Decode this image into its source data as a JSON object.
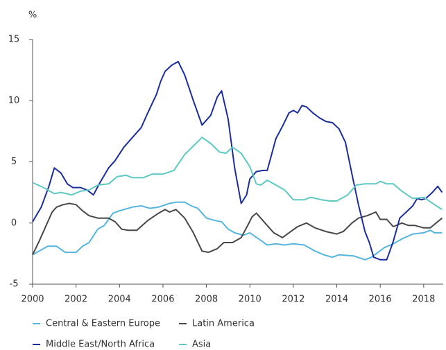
{
  "chart_data": {
    "type": "line",
    "y_label": "%",
    "xlim": [
      2000,
      2018.9
    ],
    "xticks": [
      2000,
      2002,
      2004,
      2006,
      2008,
      2010,
      2012,
      2014,
      2016,
      2018
    ],
    "ylim": [
      -5,
      15
    ],
    "yticks": [
      -5,
      0,
      5,
      10,
      15
    ],
    "series": [
      {
        "name": "Central & Eastern Europe",
        "color": "#55b5df",
        "x": [
          2000,
          2000.3,
          2000.7,
          2001.1,
          2001.5,
          2002,
          2002.3,
          2002.6,
          2003,
          2003.3,
          2003.7,
          2004,
          2004.6,
          2005.0,
          2005.4,
          2005.8,
          2006.3,
          2006.6,
          2007.0,
          2007.3,
          2007.6,
          2008.0,
          2008.4,
          2008.7,
          2009.0,
          2009.3,
          2009.7,
          2010.0,
          2010.4,
          2010.8,
          2011.2,
          2011.6,
          2012.0,
          2012.5,
          2013.0,
          2013.4,
          2013.8,
          2014.1,
          2014.8,
          2015.3,
          2015.6,
          2016.2,
          2016.6,
          2017.0,
          2017.5,
          2018.0,
          2018.3,
          2018.5,
          2018.85
        ],
        "values": [
          -2.6,
          -2.3,
          -1.9,
          -1.9,
          -2.4,
          -2.4,
          -1.9,
          -1.6,
          -0.5,
          -0.2,
          0.8,
          1.0,
          1.3,
          1.4,
          1.2,
          1.3,
          1.6,
          1.7,
          1.7,
          1.4,
          1.2,
          0.4,
          0.2,
          0.1,
          -0.5,
          -0.8,
          -1.0,
          -0.8,
          -1.3,
          -1.8,
          -1.7,
          -1.8,
          -1.7,
          -1.8,
          -2.3,
          -2.6,
          -2.8,
          -2.6,
          -2.7,
          -3.0,
          -2.8,
          -2.0,
          -1.7,
          -1.3,
          -0.9,
          -0.8,
          -0.6,
          -0.8,
          -0.8
        ]
      },
      {
        "name": "Latin America",
        "color": "#474747",
        "x": [
          2000,
          2000.3,
          2000.6,
          2000.9,
          2001.1,
          2001.4,
          2001.7,
          2002.0,
          2002.3,
          2002.6,
          2003,
          2003.5,
          2003.8,
          2004.1,
          2004.4,
          2004.8,
          2005.3,
          2005.8,
          2006.1,
          2006.3,
          2006.6,
          2007.0,
          2007.4,
          2007.8,
          2008.1,
          2008.5,
          2008.8,
          2009.2,
          2009.6,
          2009.9,
          2010.1,
          2010.3,
          2010.6,
          2011.1,
          2011.5,
          2011.8,
          2012.2,
          2012.6,
          2013.0,
          2013.5,
          2014.0,
          2014.3,
          2014.7,
          2015.0,
          2015.4,
          2015.8,
          2016.0,
          2016.3,
          2016.6,
          2017.0,
          2017.3,
          2017.6,
          2018.0,
          2018.3,
          2018.85
        ],
        "values": [
          -2.6,
          -1.5,
          -0.3,
          0.9,
          1.3,
          1.5,
          1.6,
          1.5,
          1.0,
          0.6,
          0.4,
          0.4,
          0.1,
          -0.5,
          -0.6,
          -0.6,
          0.2,
          0.8,
          1.1,
          0.9,
          1.1,
          0.4,
          -0.8,
          -2.3,
          -2.4,
          -2.1,
          -1.6,
          -1.6,
          -1.2,
          -0.2,
          0.5,
          0.8,
          0.2,
          -0.8,
          -1.2,
          -0.8,
          -0.3,
          0.0,
          -0.4,
          -0.7,
          -0.9,
          -0.7,
          0.0,
          0.4,
          0.6,
          0.9,
          0.3,
          0.3,
          -0.3,
          0.0,
          -0.2,
          -0.2,
          -0.4,
          -0.4,
          0.4
        ]
      },
      {
        "name": "Middle East/North Africa",
        "color": "#1a2d9c",
        "x": [
          2000.0,
          2000.4,
          2000.75,
          2001.0,
          2001.3,
          2001.6,
          2001.85,
          2002.2,
          2002.5,
          2002.8,
          2003.1,
          2003.5,
          2003.8,
          2004.2,
          2004.6,
          2005.0,
          2005.3,
          2005.7,
          2005.9,
          2006.1,
          2006.4,
          2006.7,
          2007.0,
          2007.4,
          2007.8,
          2008.2,
          2008.5,
          2008.7,
          2009.0,
          2009.3,
          2009.6,
          2009.85,
          2010.0,
          2010.3,
          2010.6,
          2010.8,
          2011.2,
          2011.5,
          2011.8,
          2012.0,
          2012.2,
          2012.4,
          2012.6,
          2012.9,
          2013.2,
          2013.5,
          2013.8,
          2014.1,
          2014.4,
          2014.7,
          2015.0,
          2015.3,
          2015.5,
          2015.7,
          2016.0,
          2016.3,
          2016.6,
          2016.9,
          2017.2,
          2017.5,
          2017.7,
          2017.9,
          2018.1,
          2018.4,
          2018.65,
          2018.85
        ],
        "values": [
          0.1,
          1.3,
          3.0,
          4.5,
          4.1,
          3.2,
          2.9,
          2.9,
          2.7,
          2.3,
          3.3,
          4.5,
          5.1,
          6.2,
          7.0,
          7.8,
          9.0,
          10.5,
          11.6,
          12.4,
          12.9,
          13.2,
          12.1,
          10.0,
          8.0,
          8.8,
          10.3,
          10.8,
          8.5,
          4.5,
          1.6,
          2.3,
          3.6,
          4.2,
          4.3,
          4.3,
          6.9,
          7.9,
          9.0,
          9.2,
          9.0,
          9.6,
          9.5,
          9.0,
          8.6,
          8.3,
          8.2,
          7.7,
          6.6,
          4.0,
          1.5,
          -0.7,
          -1.6,
          -2.8,
          -3.0,
          -3.0,
          -1.5,
          0.4,
          0.9,
          1.4,
          2.0,
          1.9,
          2.0,
          2.5,
          3.0,
          2.5
        ]
      },
      {
        "name": "Asia",
        "color": "#5ec8c2",
        "x": [
          2000,
          2000.5,
          2001,
          2001.3,
          2001.8,
          2002.2,
          2002.6,
          2003,
          2003.5,
          2003.9,
          2004.3,
          2004.6,
          2005.1,
          2005.5,
          2006.0,
          2006.5,
          2007.0,
          2007.4,
          2007.8,
          2008.2,
          2008.6,
          2008.9,
          2009.2,
          2009.6,
          2010.0,
          2010.3,
          2010.5,
          2010.8,
          2011.2,
          2011.6,
          2012.0,
          2012.5,
          2012.8,
          2013.3,
          2013.7,
          2014.0,
          2014.5,
          2014.9,
          2015.3,
          2015.8,
          2016.0,
          2016.3,
          2016.6,
          2017.0,
          2017.5,
          2018.0,
          2018.5,
          2018.85
        ],
        "values": [
          3.3,
          2.9,
          2.4,
          2.5,
          2.3,
          2.6,
          2.7,
          3.1,
          3.2,
          3.8,
          3.9,
          3.7,
          3.7,
          4.0,
          4.0,
          4.3,
          5.6,
          6.3,
          7.0,
          6.5,
          5.8,
          5.7,
          6.2,
          5.7,
          4.6,
          3.2,
          3.1,
          3.5,
          3.1,
          2.7,
          1.9,
          1.9,
          2.1,
          1.9,
          1.8,
          1.8,
          2.3,
          3.1,
          3.2,
          3.2,
          3.4,
          3.2,
          3.2,
          2.6,
          2.0,
          2.1,
          1.5,
          1.1
        ]
      }
    ]
  }
}
